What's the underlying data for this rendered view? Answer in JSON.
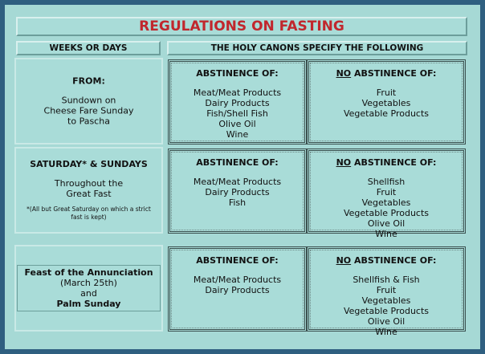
{
  "title": "REGULATIONS ON FASTING",
  "headers": [
    "WEEKS OR DAYS",
    "THE HOLY CANONS SPECIFY THE FOLLOWING"
  ],
  "rows": [
    {
      "period": {
        "lines": [
          {
            "text": "FROM:",
            "bold": true
          },
          {
            "text": "Sundown on",
            "bold": false
          },
          {
            "text": "Cheese Fare Sunday",
            "bold": false
          },
          {
            "text": "to Pascha",
            "bold": false
          }
        ]
      },
      "abstinence": {
        "heading": "ABSTINENCE OF:",
        "items": [
          "Meat/Meat Products",
          "Dairy Products",
          "Fish/Shell Fish",
          "Olive Oil",
          "Wine"
        ]
      },
      "no_abstinence": {
        "emphasis": "NO",
        "heading": "ABSTINENCE OF:",
        "items": [
          "Fruit",
          "Vegetables",
          "Vegetable Products"
        ]
      }
    },
    {
      "period": {
        "lines": [
          {
            "text": "SATURDAY* & SUNDAYS",
            "bold": true
          },
          {
            "text": "Throughout the",
            "bold": false
          },
          {
            "text": "Great Fast",
            "bold": false
          }
        ],
        "note": "*(All but Great Saturday on which a strict fast is kept)"
      },
      "abstinence": {
        "heading": "ABSTINENCE OF:",
        "items": [
          "Meat/Meat Products",
          "Dairy Products",
          "Fish"
        ]
      },
      "no_abstinence": {
        "emphasis": "NO",
        "heading": "ABSTINENCE OF:",
        "items": [
          "Shellfish",
          "Fruit",
          "Vegetables",
          "Vegetable Products",
          "Olive Oil",
          "Wine"
        ]
      }
    },
    {
      "period": {
        "lines": [
          {
            "text": "Feast of the Annunciation",
            "bold": true
          },
          {
            "text": "(March 25th)",
            "bold": false
          },
          {
            "text": "and",
            "bold": false
          },
          {
            "text": "Palm Sunday",
            "bold": true
          }
        ],
        "boxed": true
      },
      "abstinence": {
        "heading": "ABSTINENCE OF:",
        "items": [
          "Meat/Meat Products",
          "Dairy Products"
        ]
      },
      "no_abstinence": {
        "emphasis": "NO",
        "heading": "ABSTINENCE OF:",
        "items": [
          "Shellfish & Fish",
          "Fruit",
          "Vegetables",
          "Vegetable Products",
          "Olive Oil",
          "Wine"
        ]
      }
    }
  ]
}
